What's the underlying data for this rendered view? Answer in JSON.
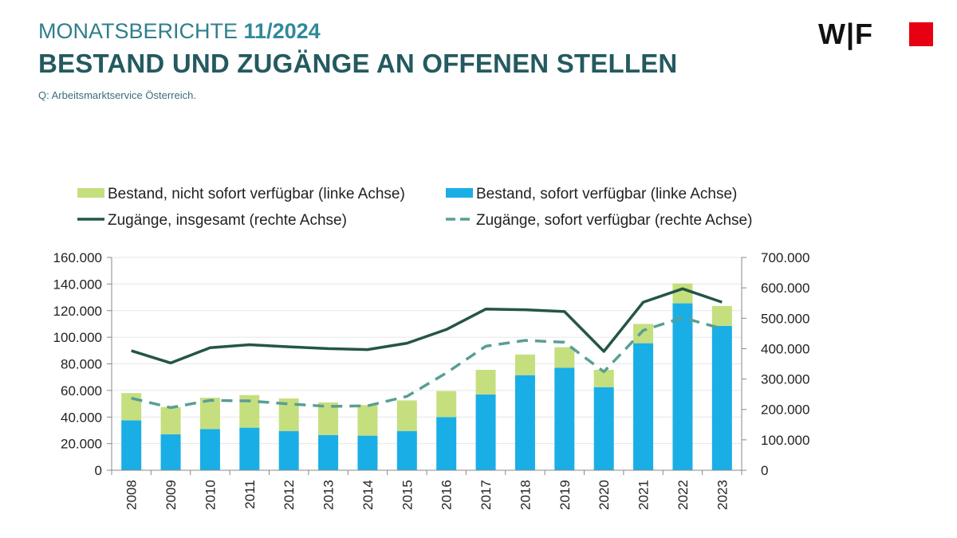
{
  "header": {
    "report_prefix": "MONATSBERICHTE",
    "report_issue": "11/2024",
    "title": "BESTAND UND ZUGÄNGE AN OFFENEN STELLEN",
    "source": "Q: Arbeitsmarktservice Österreich."
  },
  "logo": {
    "text": "W|F",
    "square_color": "#e60012"
  },
  "colors": {
    "not_available": "#c5df7e",
    "available": "#1aaee6",
    "total_line": "#245547",
    "available_line": "#5a9e94",
    "grid": "#e6e6e6"
  },
  "chart_data": {
    "type": "bar",
    "categories": [
      "2008",
      "2009",
      "2010",
      "2011",
      "2012",
      "2013",
      "2014",
      "2015",
      "2016",
      "2017",
      "2018",
      "2019",
      "2020",
      "2021",
      "2022",
      "2023"
    ],
    "series": [
      {
        "name": "Bestand, nicht sofort verfügbar (linke Achse)",
        "kind": "stacked-bar",
        "axis": "left",
        "values": [
          20500,
          20500,
          23500,
          24500,
          24500,
          24500,
          23000,
          23000,
          19500,
          18500,
          15500,
          15500,
          13000,
          14500,
          15000,
          15000
        ]
      },
      {
        "name": "Bestand, sofort verfügbar (linke Achse)",
        "kind": "stacked-bar",
        "axis": "left",
        "values": [
          37500,
          27000,
          31000,
          32000,
          29500,
          26500,
          26000,
          29500,
          40000,
          57000,
          71500,
          77000,
          62500,
          95500,
          125500,
          108500
        ]
      },
      {
        "name": "Zugänge, insgesamt (rechte Achse)",
        "kind": "line",
        "axis": "right",
        "style": "solid",
        "values": [
          393000,
          353000,
          403000,
          413000,
          406000,
          400000,
          397000,
          418000,
          463000,
          530000,
          528000,
          522000,
          391000,
          553000,
          597000,
          553000
        ]
      },
      {
        "name": "Zugänge, sofort verfügbar (rechte Achse)",
        "kind": "line",
        "axis": "right",
        "style": "dashed",
        "values": [
          237000,
          206000,
          230000,
          228000,
          218000,
          210000,
          212000,
          243000,
          320000,
          408000,
          427000,
          421000,
          324000,
          460000,
          502000,
          466000
        ]
      }
    ],
    "left_axis": {
      "ylim": [
        0,
        160000
      ],
      "ticks": [
        "0",
        "20.000",
        "40.000",
        "60.000",
        "80.000",
        "100.000",
        "120.000",
        "140.000",
        "160.000"
      ]
    },
    "right_axis": {
      "ylim": [
        0,
        700000
      ],
      "ticks": [
        "0",
        "100.000",
        "200.000",
        "300.000",
        "400.000",
        "500.000",
        "600.000",
        "700.000"
      ]
    },
    "grid": true,
    "legend_position": "top"
  }
}
